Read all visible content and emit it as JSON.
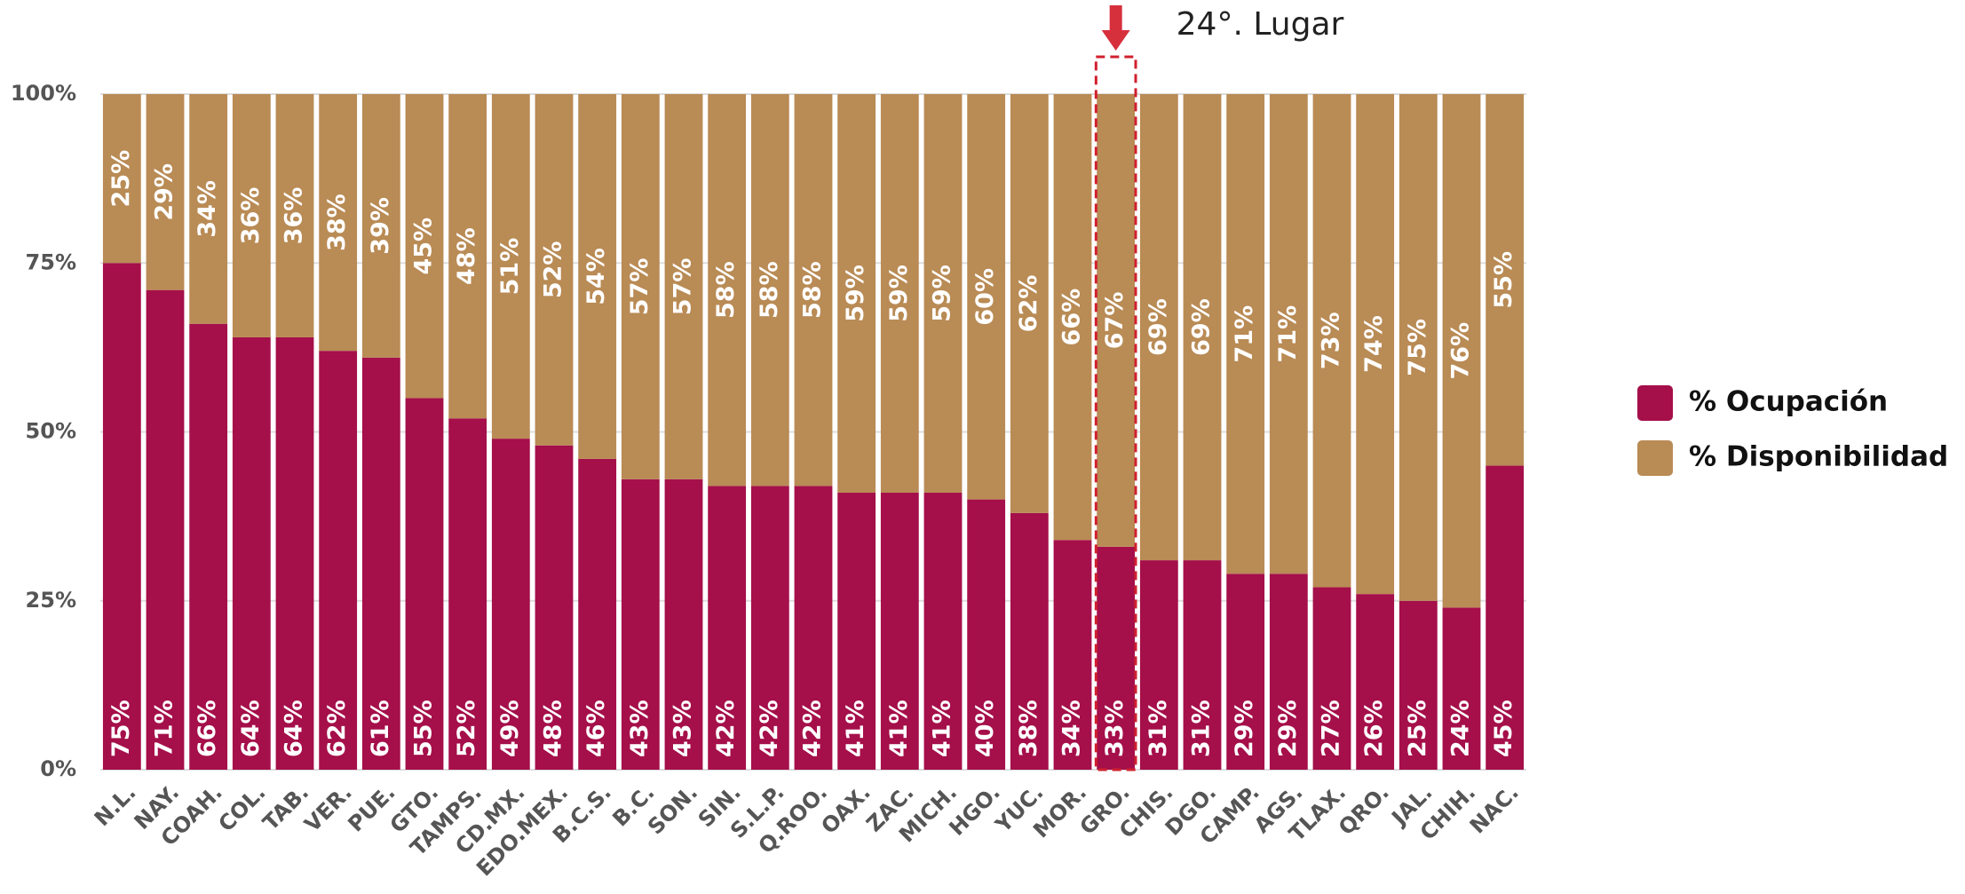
{
  "chart_data": {
    "type": "stacked_bar",
    "categories": [
      "N.L.",
      "NAY.",
      "COAH.",
      "COL.",
      "TAB.",
      "VER.",
      "PUE.",
      "GTO.",
      "TAMPS.",
      "CD.MX.",
      "EDO.MEX.",
      "B.C.S.",
      "B.C.",
      "SON.",
      "SIN.",
      "S.L.P.",
      "Q.ROO.",
      "OAX.",
      "ZAC.",
      "MICH.",
      "HGO.",
      "YUC.",
      "MOR.",
      "GRO.",
      "CHIS.",
      "DGO.",
      "CAMP.",
      "AGS.",
      "TLAX.",
      "QRO.",
      "JAL.",
      "CHIH.",
      "NAC."
    ],
    "series": [
      {
        "name": "% Ocupación",
        "color": "#a50f4a",
        "values": [
          75,
          71,
          66,
          64,
          64,
          62,
          61,
          55,
          52,
          49,
          48,
          46,
          43,
          43,
          42,
          42,
          42,
          41,
          41,
          41,
          40,
          38,
          34,
          33,
          31,
          31,
          29,
          29,
          27,
          26,
          25,
          24,
          45
        ],
        "value_labels": [
          "75%",
          "71%",
          "66%",
          "64%",
          "64%",
          "62%",
          "61%",
          "55%",
          "52%",
          "49%",
          "48%",
          "46%",
          "43%",
          "43%",
          "42%",
          "42%",
          "42%",
          "41%",
          "41%",
          "41%",
          "40%",
          "38%",
          "34%",
          "33%",
          "31%",
          "31%",
          "29%",
          "29%",
          "27%",
          "26%",
          "25%",
          "24%",
          "45%"
        ]
      },
      {
        "name": "% Disponibilidad",
        "color": "#b98b55",
        "values": [
          25,
          29,
          34,
          36,
          36,
          38,
          39,
          45,
          48,
          51,
          52,
          54,
          57,
          57,
          58,
          58,
          58,
          59,
          59,
          59,
          60,
          62,
          66,
          67,
          69,
          69,
          71,
          71,
          73,
          74,
          75,
          76,
          55
        ],
        "value_labels": [
          "25%",
          "29%",
          "34%",
          "36%",
          "36%",
          "38%",
          "39%",
          "45%",
          "48%",
          "51%",
          "52%",
          "54%",
          "57%",
          "57%",
          "58%",
          "58%",
          "58%",
          "59%",
          "59%",
          "59%",
          "60%",
          "62%",
          "66%",
          "67%",
          "69%",
          "69%",
          "71%",
          "71%",
          "73%",
          "74%",
          "75%",
          "76%",
          "55%"
        ]
      }
    ],
    "ylim": [
      0,
      100
    ],
    "yticks": [
      {
        "value": 0,
        "label": "0%"
      },
      {
        "value": 25,
        "label": "25%"
      },
      {
        "value": 50,
        "label": "50%"
      },
      {
        "value": 75,
        "label": "75%"
      },
      {
        "value": 100,
        "label": "100%"
      }
    ],
    "grid": true,
    "legend": "right",
    "annotation": {
      "text": "24°. Lugar",
      "category": "GRO."
    }
  }
}
